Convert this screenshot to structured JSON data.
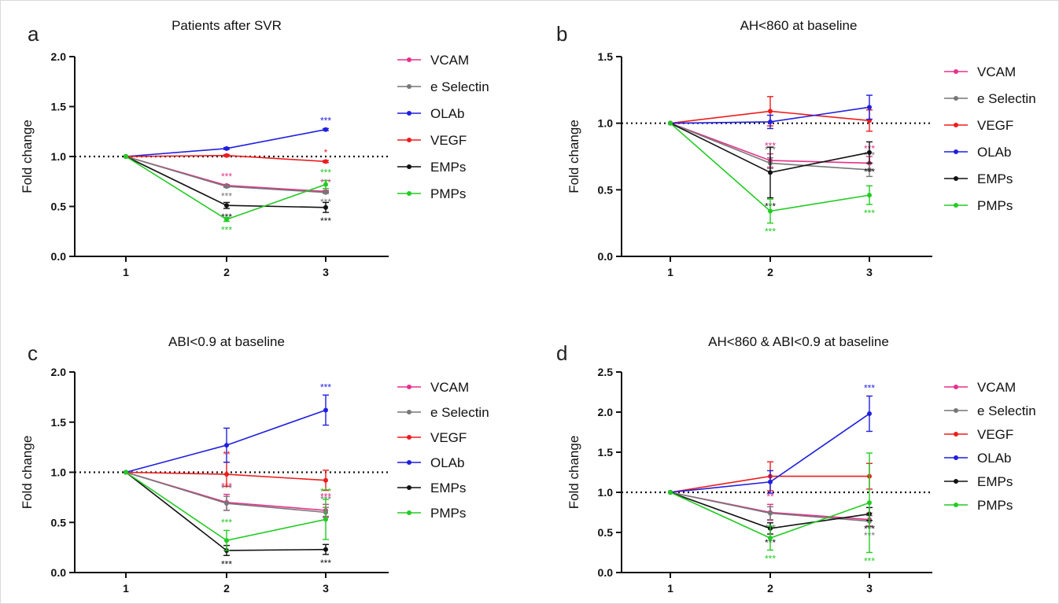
{
  "chart_data": [
    {
      "type": "line",
      "panel_letter": "a",
      "title": "Patients after SVR",
      "ylabel": "Fold change",
      "xlabel": "",
      "categories": [
        "1",
        "2",
        "3"
      ],
      "ylim": [
        0,
        2.0
      ],
      "yticks": [
        "0.0",
        "0.5",
        "1.0",
        "1.5",
        "2.0"
      ],
      "reference_line": 1.0,
      "legend_position": "right",
      "series": [
        {
          "name": "VCAM",
          "color": "#e6318c",
          "values": [
            1.0,
            0.71,
            0.65
          ],
          "err": [
            0,
            0.01,
            0.01
          ],
          "labels": [
            null,
            {
              "text": "***",
              "pos": "above"
            },
            {
              "text": "***",
              "pos": "above"
            }
          ]
        },
        {
          "name": "e Selectin",
          "color": "#777777",
          "values": [
            1.0,
            0.7,
            0.64
          ],
          "err": [
            0,
            0.01,
            0.01
          ],
          "labels": [
            null,
            {
              "text": "***",
              "pos": "below"
            },
            {
              "text": "***",
              "pos": "below"
            }
          ]
        },
        {
          "name": "OLAb",
          "color": "#1f1fe0",
          "values": [
            1.0,
            1.08,
            1.27
          ],
          "err": [
            0,
            0.01,
            0.01
          ],
          "labels": [
            null,
            null,
            {
              "text": "***",
              "pos": "above"
            }
          ]
        },
        {
          "name": "VEGF",
          "color": "#ee1c1c",
          "values": [
            1.0,
            1.01,
            0.95
          ],
          "err": [
            0,
            0.01,
            0.01
          ],
          "labels": [
            null,
            null,
            {
              "text": "*",
              "pos": "above"
            }
          ]
        },
        {
          "name": "EMPs",
          "color": "#111111",
          "values": [
            1.0,
            0.51,
            0.49
          ],
          "err": [
            0,
            0.03,
            0.05
          ],
          "labels": [
            null,
            {
              "text": "***",
              "pos": "below"
            },
            {
              "text": "***",
              "pos": "below"
            }
          ]
        },
        {
          "name": "PMPs",
          "color": "#22cc22",
          "values": [
            1.0,
            0.37,
            0.72
          ],
          "err": [
            0,
            0.02,
            0.04
          ],
          "labels": [
            null,
            {
              "text": "***",
              "pos": "below"
            },
            {
              "text": "***",
              "pos": "above"
            }
          ]
        }
      ]
    },
    {
      "type": "line",
      "panel_letter": "b",
      "title": "AH<860 at baseline",
      "ylabel": "Fold change",
      "xlabel": "",
      "categories": [
        "1",
        "2",
        "3"
      ],
      "ylim": [
        0,
        1.5
      ],
      "yticks": [
        "0.0",
        "0.5",
        "1.0",
        "1.5"
      ],
      "reference_line": 1.0,
      "legend_position": "right",
      "series": [
        {
          "name": "VCAM",
          "color": "#e6318c",
          "values": [
            1.0,
            0.72,
            0.7
          ],
          "err": [
            0,
            0.05,
            0.05
          ],
          "labels": [
            null,
            {
              "text": "***",
              "pos": "above"
            },
            {
              "text": "***",
              "pos": "above"
            }
          ]
        },
        {
          "name": "e Selectin",
          "color": "#777777",
          "values": [
            1.0,
            0.7,
            0.65
          ],
          "err": [
            0,
            0.04,
            0.05
          ],
          "labels": [
            null,
            {
              "text": "***",
              "pos": "above"
            },
            {
              "text": "***",
              "pos": "above"
            }
          ]
        },
        {
          "name": "VEGF",
          "color": "#ee1c1c",
          "values": [
            1.0,
            1.09,
            1.02
          ],
          "err": [
            0,
            0.11,
            0.08
          ],
          "labels": [
            null,
            null,
            null
          ]
        },
        {
          "name": "OLAb",
          "color": "#1f1fe0",
          "values": [
            1.0,
            1.01,
            1.12
          ],
          "err": [
            0,
            0.05,
            0.09
          ],
          "labels": [
            null,
            null,
            null
          ]
        },
        {
          "name": "EMPs",
          "color": "#111111",
          "values": [
            1.0,
            0.63,
            0.78
          ],
          "err": [
            0,
            0.19,
            0.08
          ],
          "labels": [
            null,
            {
              "text": "***",
              "pos": "below"
            },
            {
              "text": "***",
              "pos": "below"
            }
          ]
        },
        {
          "name": "PMPs",
          "color": "#22cc22",
          "values": [
            1.0,
            0.34,
            0.46
          ],
          "err": [
            0,
            0.09,
            0.07
          ],
          "labels": [
            null,
            {
              "text": "***",
              "pos": "below"
            },
            {
              "text": "***",
              "pos": "below"
            }
          ]
        }
      ]
    },
    {
      "type": "line",
      "panel_letter": "c",
      "title": "ABI<0.9 at baseline",
      "ylabel": "Fold change",
      "xlabel": "",
      "categories": [
        "1",
        "2",
        "3"
      ],
      "ylim": [
        0,
        2.0
      ],
      "yticks": [
        "0.0",
        "0.5",
        "1.0",
        "1.5",
        "2.0"
      ],
      "reference_line": 1.0,
      "legend_position": "right",
      "series": [
        {
          "name": "VCAM",
          "color": "#e6318c",
          "values": [
            1.0,
            0.7,
            0.62
          ],
          "err": [
            0,
            0.08,
            0.06
          ],
          "labels": [
            null,
            {
              "text": "***",
              "pos": "above"
            },
            {
              "text": "***",
              "pos": "above"
            }
          ]
        },
        {
          "name": "e Selectin",
          "color": "#777777",
          "values": [
            1.0,
            0.69,
            0.6
          ],
          "err": [
            0,
            0.07,
            0.05
          ],
          "labels": [
            null,
            {
              "text": "***",
              "pos": "above"
            },
            {
              "text": "***",
              "pos": "above"
            }
          ]
        },
        {
          "name": "VEGF",
          "color": "#ee1c1c",
          "values": [
            1.0,
            0.98,
            0.92
          ],
          "err": [
            0,
            0.12,
            0.1
          ],
          "labels": [
            null,
            {
              "text": "**",
              "pos": "above"
            },
            null
          ]
        },
        {
          "name": "OLAb",
          "color": "#1f1fe0",
          "values": [
            1.0,
            1.27,
            1.62
          ],
          "err": [
            0,
            0.17,
            0.15
          ],
          "labels": [
            null,
            null,
            {
              "text": "***",
              "pos": "above"
            }
          ]
        },
        {
          "name": "EMPs",
          "color": "#111111",
          "values": [
            1.0,
            0.22,
            0.23
          ],
          "err": [
            0,
            0.05,
            0.05
          ],
          "labels": [
            null,
            {
              "text": "***",
              "pos": "below"
            },
            {
              "text": "***",
              "pos": "below"
            }
          ]
        },
        {
          "name": "PMPs",
          "color": "#22cc22",
          "values": [
            1.0,
            0.32,
            0.53
          ],
          "err": [
            0,
            0.1,
            0.2
          ],
          "labels": [
            null,
            {
              "text": "***",
              "pos": "above"
            },
            {
              "text": "***",
              "pos": "above"
            }
          ]
        }
      ]
    },
    {
      "type": "line",
      "panel_letter": "d",
      "title": "AH<860 & ABI<0.9 at baseline",
      "ylabel": "Fold change",
      "xlabel": "",
      "categories": [
        "1",
        "2",
        "3"
      ],
      "ylim": [
        0,
        2.5
      ],
      "yticks": [
        "0.0",
        "0.5",
        "1.0",
        "1.5",
        "2.0",
        "2.5"
      ],
      "reference_line": 1.0,
      "legend_position": "right",
      "series": [
        {
          "name": "VCAM",
          "color": "#e6318c",
          "values": [
            1.0,
            0.75,
            0.66
          ],
          "err": [
            0,
            0.1,
            0.08
          ],
          "labels": [
            null,
            {
              "text": "**",
              "pos": "above"
            },
            null
          ]
        },
        {
          "name": "e Selectin",
          "color": "#777777",
          "values": [
            1.0,
            0.74,
            0.64
          ],
          "err": [
            0,
            0.08,
            0.07
          ],
          "labels": [
            null,
            {
              "text": "***",
              "pos": "below"
            },
            {
              "text": "***",
              "pos": "below"
            }
          ]
        },
        {
          "name": "VEGF",
          "color": "#ee1c1c",
          "values": [
            1.0,
            1.2,
            1.2
          ],
          "err": [
            0,
            0.18,
            0.16
          ],
          "labels": [
            null,
            null,
            null
          ]
        },
        {
          "name": "OLAb",
          "color": "#1f1fe0",
          "values": [
            1.0,
            1.13,
            1.98
          ],
          "err": [
            0,
            0.14,
            0.22
          ],
          "labels": [
            null,
            null,
            {
              "text": "***",
              "pos": "above"
            }
          ]
        },
        {
          "name": "EMPs",
          "color": "#111111",
          "values": [
            1.0,
            0.55,
            0.73
          ],
          "err": [
            0,
            0.07,
            0.08
          ],
          "labels": [
            null,
            {
              "text": "***",
              "pos": "below"
            },
            {
              "text": "***",
              "pos": "below"
            }
          ]
        },
        {
          "name": "PMPs",
          "color": "#22cc22",
          "values": [
            1.0,
            0.43,
            0.87
          ],
          "err": [
            0,
            0.15,
            0.62
          ],
          "labels": [
            null,
            {
              "text": "***",
              "pos": "below"
            },
            {
              "text": "***",
              "pos": "below"
            }
          ]
        }
      ]
    }
  ]
}
